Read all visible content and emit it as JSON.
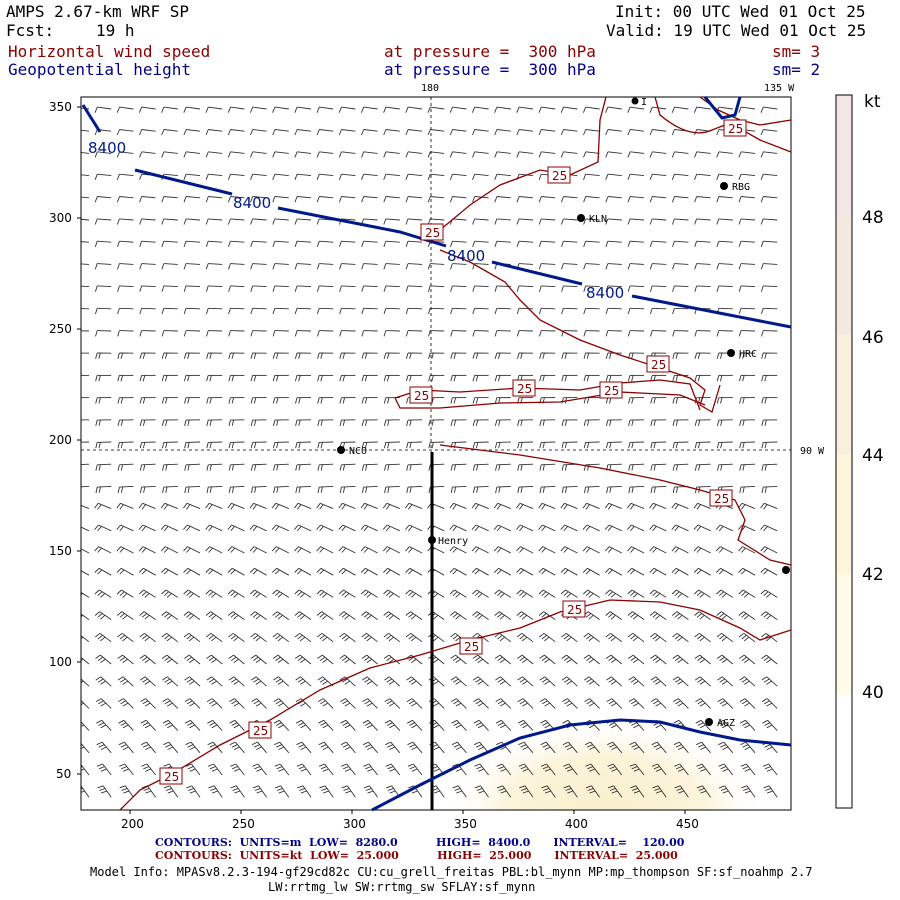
{
  "header": {
    "model_title": "AMPS 2.67-km WRF SP",
    "fcst_label": "Fcst:",
    "fcst_value": "19 h",
    "init": "Init: 00 UTC Wed 01 Oct 25",
    "valid": "Valid: 19 UTC Wed 01 Oct 25",
    "field1": {
      "name": "Horizontal wind speed",
      "level": "at pressure =  300 hPa",
      "sm": "sm= 3"
    },
    "field2": {
      "name": "Geopotential height",
      "level": "at pressure =  300 hPa",
      "sm": "sm= 2"
    }
  },
  "map": {
    "meridian_labels": {
      "top_180": "180",
      "top_135w": "135 W",
      "right_90w": "90 W"
    },
    "stations": [
      "KLN",
      "RBG",
      "HRC",
      "NCO",
      "Henry",
      "AGZ",
      "I"
    ],
    "x_axis_ticks": [
      "200",
      "250",
      "300",
      "350",
      "400",
      "450"
    ],
    "y_axis_ticks": [
      "50",
      "100",
      "150",
      "200",
      "250",
      "300",
      "350"
    ],
    "height_contour_label": "8400",
    "speed_contour_label": "25",
    "colors": {
      "height_contour": "#001a8c",
      "speed_contour": "#8b0000",
      "shading": "#fbf5d6"
    }
  },
  "colorbar": {
    "unit": "kt",
    "labels": [
      "48",
      "46",
      "44",
      "42",
      "40"
    ],
    "colors": [
      "#f2e6e6",
      "#f3eadf",
      "#f8f0dc",
      "#fcf7dc",
      "#fefce8",
      "#ffffff"
    ]
  },
  "footer": {
    "row1": {
      "label": "CONTOURS:",
      "units": "UNITS=m",
      "low_label": "LOW=",
      "low": "8280.0",
      "high_label": "HIGH=",
      "high": "8400.0",
      "interval_label": "INTERVAL=",
      "interval": "120.00"
    },
    "row2": {
      "label": "CONTOURS:",
      "units": "UNITS=kt",
      "low_label": "LOW=",
      "low": "25.000",
      "high_label": "HIGH=",
      "high": "25.000",
      "interval_label": "INTERVAL=",
      "interval": "25.000"
    },
    "model_info": "Model Info: MPASv8.2.3-194-gf29cd82c CU:cu_grell_freitas PBL:bl_mynn MP:mp_thompson SF:sf_noahmp 2.7",
    "model_info2": "LW:rrtmg_lw SW:rrtmg_sw SFLAY:sf_mynn"
  }
}
